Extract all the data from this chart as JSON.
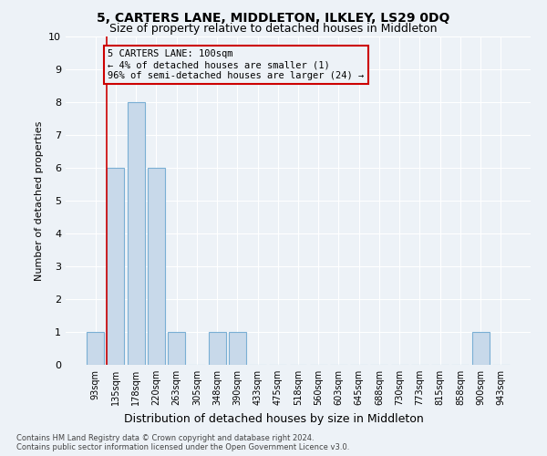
{
  "title": "5, CARTERS LANE, MIDDLETON, ILKLEY, LS29 0DQ",
  "subtitle": "Size of property relative to detached houses in Middleton",
  "xlabel": "Distribution of detached houses by size in Middleton",
  "ylabel": "Number of detached properties",
  "categories": [
    "93sqm",
    "135sqm",
    "178sqm",
    "220sqm",
    "263sqm",
    "305sqm",
    "348sqm",
    "390sqm",
    "433sqm",
    "475sqm",
    "518sqm",
    "560sqm",
    "603sqm",
    "645sqm",
    "688sqm",
    "730sqm",
    "773sqm",
    "815sqm",
    "858sqm",
    "900sqm",
    "943sqm"
  ],
  "values": [
    1,
    6,
    8,
    6,
    1,
    0,
    1,
    1,
    0,
    0,
    0,
    0,
    0,
    0,
    0,
    0,
    0,
    0,
    0,
    1,
    0
  ],
  "bar_color": "#c8d9ea",
  "bar_edge_color": "#7aafd4",
  "annotation_text": "5 CARTERS LANE: 100sqm\n← 4% of detached houses are smaller (1)\n96% of semi-detached houses are larger (24) →",
  "annotation_box_edge_color": "#cc0000",
  "vline_color": "#cc0000",
  "ylim": [
    0,
    10
  ],
  "yticks": [
    0,
    1,
    2,
    3,
    4,
    5,
    6,
    7,
    8,
    9,
    10
  ],
  "footnote": "Contains HM Land Registry data © Crown copyright and database right 2024.\nContains public sector information licensed under the Open Government Licence v3.0.",
  "background_color": "#edf2f7",
  "grid_color": "#ffffff",
  "title_fontsize": 10,
  "subtitle_fontsize": 9,
  "annotation_fontsize": 7.5,
  "ylabel_fontsize": 8,
  "xlabel_fontsize": 9,
  "tick_fontsize": 7,
  "footnote_fontsize": 6
}
